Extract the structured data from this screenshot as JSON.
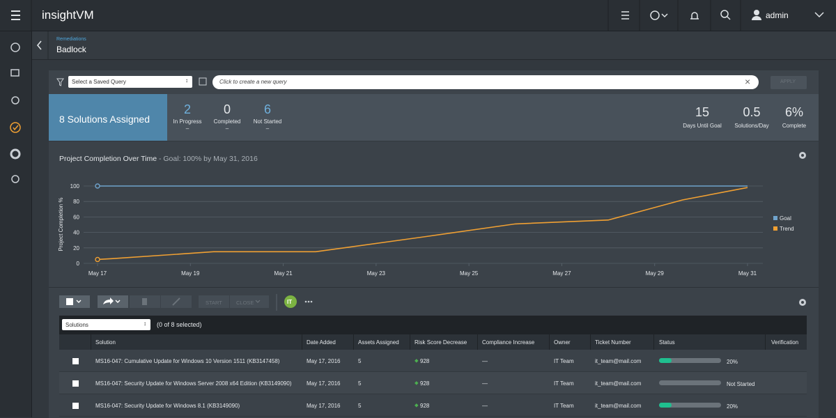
{
  "header": {
    "app": "insightVM",
    "user": "admin"
  },
  "breadcrumb": {
    "parent": "Remediations",
    "title": "Badlock"
  },
  "filter": {
    "saved_query": "Select a Saved Query",
    "query_placeholder": "Click to create a new query",
    "apply": "APPLY"
  },
  "summary": {
    "assigned": "8 Solutions Assigned",
    "stats": [
      {
        "value": 2,
        "label": "In Progress",
        "sub": "–"
      },
      {
        "value": 0,
        "label": "Completed",
        "sub": "–"
      },
      {
        "value": 6,
        "label": "Not Started",
        "sub": "–"
      }
    ],
    "goals": [
      {
        "value": 15,
        "label": "Days Until Goal"
      },
      {
        "value": 0.5,
        "label": "Solutions/Day"
      },
      {
        "value": "6%",
        "label": "Complete"
      }
    ]
  },
  "chart_data": {
    "type": "line",
    "title": "Project Completion Over Time",
    "subtitle": " - Goal: 100% by May 31, 2016",
    "y_label": "Project Completion %",
    "xlim": [
      17,
      31
    ],
    "xticks": [
      {
        "value": 17,
        "label": "May 17"
      },
      {
        "value": 19,
        "label": "May 19"
      },
      {
        "value": 21,
        "label": "May 21"
      },
      {
        "value": 23,
        "label": "May 23"
      },
      {
        "value": 25,
        "label": "May 25"
      },
      {
        "value": 27,
        "label": "May 27"
      },
      {
        "value": 29,
        "label": "May 29"
      },
      {
        "value": 31,
        "label": "May 31"
      }
    ],
    "ylim": [
      0,
      100
    ],
    "yticks": [
      0,
      20,
      40,
      60,
      80,
      100
    ],
    "grid": true,
    "series": [
      {
        "name": "Goal",
        "color": "#6fa3cc",
        "x": [
          17,
          31
        ],
        "values": [
          100,
          100
        ]
      },
      {
        "name": "Trend",
        "color": "#f0a033",
        "x": [
          17,
          17.3,
          19.5,
          21.7,
          24,
          26,
          28,
          29.6,
          31
        ],
        "values": [
          5,
          6,
          15,
          15,
          34,
          51,
          56,
          82,
          98
        ]
      }
    ]
  },
  "toolbar": {
    "start": "START",
    "close": "CLOSE",
    "badge": "IT"
  },
  "table": {
    "dropdown": "Solutions",
    "selected": "(0 of 8 selected)",
    "columns": [
      "Solution",
      "Date Added",
      "Assets Assigned",
      "Risk Score Decrease",
      "Compliance Increase",
      "Owner",
      "Ticket Number",
      "Status",
      "Verification"
    ],
    "rows": [
      {
        "solution": "MS16-047: Cumulative Update for Windows 10 Version 1511 (KB3147458)",
        "date": "May 17, 2016",
        "assets": 5,
        "risk": 928,
        "compliance": "—",
        "owner": "IT Team",
        "ticket": "it_team@mail.com",
        "progress": 20,
        "status": "20%"
      },
      {
        "solution": "MS16-047: Security Update for Windows Server 2008 x64 Edition (KB3149090)",
        "date": "May 17, 2016",
        "assets": 5,
        "risk": 928,
        "compliance": "—",
        "owner": "IT Team",
        "ticket": "it_team@mail.com",
        "progress": null,
        "status": "Not Started"
      },
      {
        "solution": "MS16-047: Security Update for Windows 8.1 (KB3149090)",
        "date": "May 17, 2016",
        "assets": 5,
        "risk": 928,
        "compliance": "—",
        "owner": "IT Team",
        "ticket": "it_team@mail.com",
        "progress": 20,
        "status": "20%"
      }
    ]
  }
}
